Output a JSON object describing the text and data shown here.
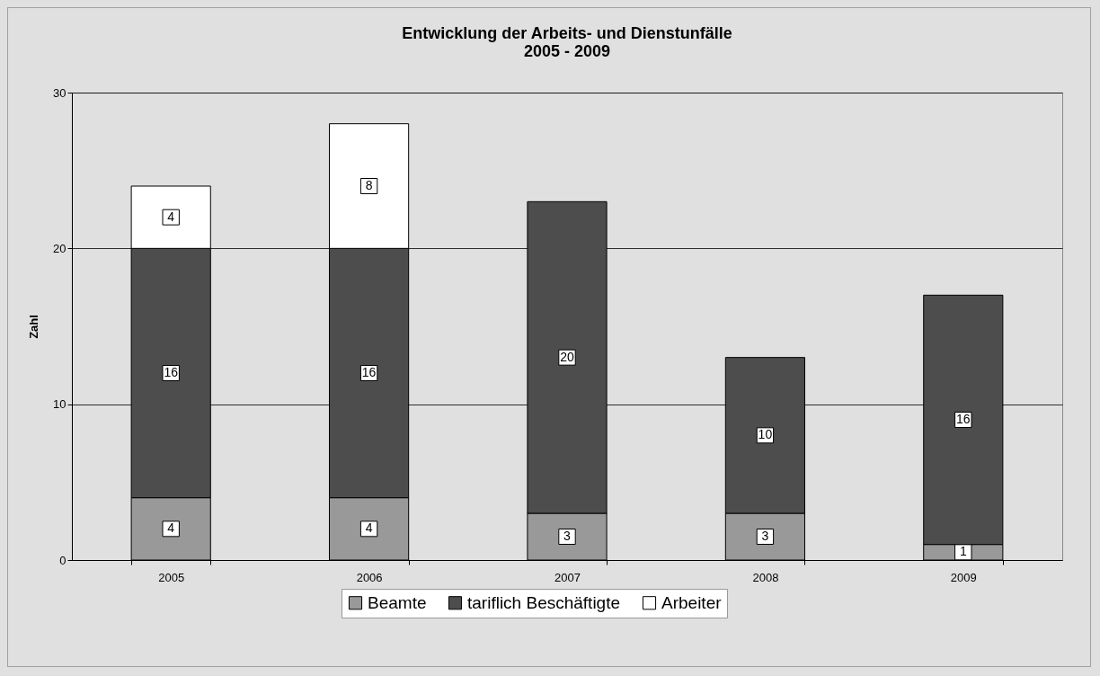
{
  "chart_data": {
    "type": "bar",
    "title": "Entwicklung der Arbeits- und Dienstunfälle\n2005 - 2009",
    "ylabel": "Zahl",
    "categories": [
      "2005",
      "2006",
      "2007",
      "2008",
      "2009"
    ],
    "stacked": true,
    "data_labels": true,
    "ylim": [
      0,
      30
    ],
    "yticks": [
      0,
      10,
      20,
      30
    ],
    "grid": "y",
    "legend": "bottom",
    "series": [
      {
        "name": "Beamte",
        "color": "#999999",
        "values": [
          4,
          4,
          3,
          3,
          1
        ]
      },
      {
        "name": "tariflich Beschäftigte",
        "color": "#4d4d4d",
        "values": [
          16,
          16,
          20,
          10,
          16
        ]
      },
      {
        "name": "Arbeiter",
        "color": "#ffffff",
        "values": [
          4,
          8,
          null,
          null,
          null
        ]
      }
    ]
  }
}
